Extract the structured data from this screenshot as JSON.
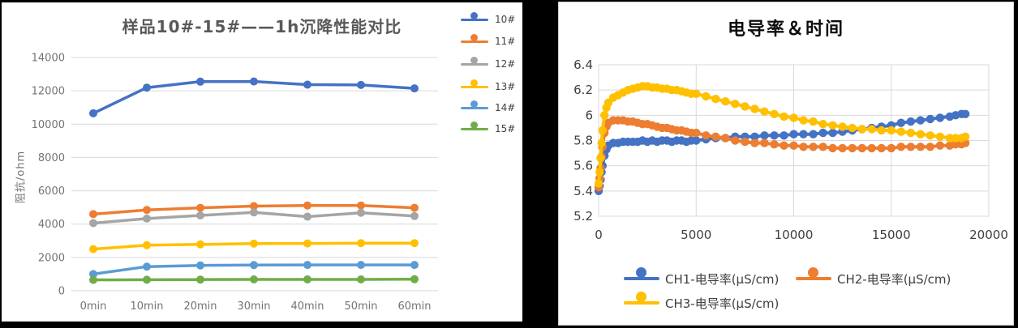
{
  "palette": {
    "excel_blue": "#4472C4",
    "excel_orange": "#ED7D31",
    "excel_gray": "#A5A5A5",
    "excel_yellow": "#FFC000",
    "excel_lightblue": "#5B9BD5",
    "excel_green": "#70AD47",
    "gridline": "#D9D9D9",
    "left_axis_text": "#737373",
    "right_axis_text": "#404040",
    "left_title_text": "#595959",
    "right_title_text": "#0d0d0d"
  },
  "chart_data": [
    {
      "type": "line",
      "title": "样品10#-15#——1h沉降性能对比",
      "xlabel": "",
      "ylabel": "阻抗/ohm",
      "categories": [
        "0min",
        "10min",
        "20min",
        "30min",
        "40min",
        "50min",
        "60min"
      ],
      "y_ticks": [
        0,
        2000,
        4000,
        6000,
        8000,
        10000,
        12000,
        14000
      ],
      "y_tick_labels": [
        "0",
        "2000",
        "4000",
        "6000",
        "8000",
        "10000",
        "12000",
        "14000"
      ],
      "ylim": [
        0,
        14000
      ],
      "grid": "horizontal",
      "legend_position": "right",
      "series": [
        {
          "name": "10#",
          "color": "#4472C4",
          "values": [
            10650,
            12190,
            12550,
            12560,
            12370,
            12350,
            12150
          ]
        },
        {
          "name": "11#",
          "color": "#ED7D31",
          "values": [
            4600,
            4850,
            4980,
            5080,
            5120,
            5120,
            4980
          ]
        },
        {
          "name": "12#",
          "color": "#A5A5A5",
          "values": [
            4060,
            4330,
            4520,
            4700,
            4450,
            4680,
            4480
          ]
        },
        {
          "name": "13#",
          "color": "#FFC000",
          "values": [
            2500,
            2730,
            2780,
            2830,
            2840,
            2860,
            2860
          ]
        },
        {
          "name": "14#",
          "color": "#5B9BD5",
          "values": [
            1000,
            1450,
            1520,
            1540,
            1550,
            1550,
            1550
          ]
        },
        {
          "name": "15#",
          "color": "#70AD47",
          "values": [
            650,
            660,
            670,
            680,
            680,
            680,
            690
          ]
        }
      ]
    },
    {
      "type": "scatter-line",
      "title": "电导率＆时间",
      "xlabel": "",
      "ylabel": "",
      "x_ticks": [
        0,
        5000,
        10000,
        15000,
        20000
      ],
      "x_tick_labels": [
        "0",
        "5000",
        "10000",
        "15000",
        "20000"
      ],
      "y_ticks": [
        5.2,
        5.4,
        5.6,
        5.8,
        6.0,
        6.2,
        6.4
      ],
      "y_tick_labels": [
        "5.2",
        "5.4",
        "5.6",
        "5.8",
        "6",
        "6.2",
        "6.4"
      ],
      "xlim": [
        0,
        20000
      ],
      "ylim": [
        5.2,
        6.4
      ],
      "grid": "both",
      "legend_position": "bottom",
      "x": [
        0,
        50,
        100,
        150,
        200,
        300,
        400,
        500,
        750,
        1000,
        1250,
        1500,
        1750,
        2000,
        2250,
        2500,
        2750,
        3000,
        3250,
        3500,
        3750,
        4000,
        4250,
        4500,
        4750,
        5000,
        5500,
        6000,
        6500,
        7000,
        7500,
        8000,
        8500,
        9000,
        9500,
        10000,
        10500,
        11000,
        11500,
        12000,
        12500,
        13000,
        13500,
        14000,
        14500,
        15000,
        15500,
        16000,
        16500,
        17000,
        17500,
        18000,
        18300,
        18600,
        18800
      ],
      "series": [
        {
          "name": "CH1-电导率(μS/cm)",
          "color": "#4472C4",
          "y": [
            5.4,
            5.44,
            5.49,
            5.55,
            5.6,
            5.68,
            5.73,
            5.76,
            5.78,
            5.78,
            5.79,
            5.79,
            5.79,
            5.79,
            5.8,
            5.79,
            5.8,
            5.79,
            5.8,
            5.8,
            5.79,
            5.8,
            5.8,
            5.79,
            5.8,
            5.8,
            5.81,
            5.82,
            5.82,
            5.83,
            5.83,
            5.83,
            5.84,
            5.84,
            5.84,
            5.85,
            5.85,
            5.85,
            5.86,
            5.86,
            5.87,
            5.88,
            5.89,
            5.9,
            5.91,
            5.92,
            5.94,
            5.95,
            5.96,
            5.97,
            5.98,
            5.99,
            6.0,
            6.01,
            6.01
          ]
        },
        {
          "name": "CH2-电导率(μS/cm)",
          "color": "#ED7D31",
          "y": [
            5.43,
            5.5,
            5.58,
            5.67,
            5.75,
            5.86,
            5.91,
            5.94,
            5.96,
            5.96,
            5.96,
            5.95,
            5.95,
            5.94,
            5.93,
            5.93,
            5.92,
            5.91,
            5.9,
            5.9,
            5.89,
            5.88,
            5.88,
            5.87,
            5.86,
            5.86,
            5.84,
            5.83,
            5.82,
            5.8,
            5.79,
            5.78,
            5.78,
            5.77,
            5.76,
            5.76,
            5.75,
            5.75,
            5.75,
            5.74,
            5.74,
            5.74,
            5.74,
            5.74,
            5.74,
            5.74,
            5.75,
            5.75,
            5.75,
            5.75,
            5.76,
            5.76,
            5.77,
            5.77,
            5.78
          ]
        },
        {
          "name": "CH3-电导率(μS/cm)",
          "color": "#FFC000",
          "y": [
            5.46,
            5.55,
            5.66,
            5.78,
            5.88,
            6.0,
            6.06,
            6.1,
            6.14,
            6.16,
            6.18,
            6.2,
            6.21,
            6.22,
            6.23,
            6.23,
            6.22,
            6.22,
            6.21,
            6.21,
            6.2,
            6.2,
            6.19,
            6.18,
            6.17,
            6.17,
            6.15,
            6.13,
            6.11,
            6.09,
            6.07,
            6.05,
            6.03,
            6.01,
            5.99,
            5.98,
            5.96,
            5.95,
            5.93,
            5.92,
            5.91,
            5.9,
            5.89,
            5.89,
            5.88,
            5.88,
            5.87,
            5.86,
            5.85,
            5.84,
            5.83,
            5.82,
            5.82,
            5.82,
            5.83
          ]
        }
      ]
    }
  ]
}
